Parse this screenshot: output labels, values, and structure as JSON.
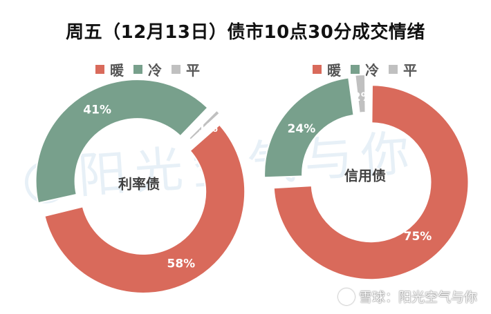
{
  "title": "周五（12月13日）债市10点30分成交情绪",
  "legend": {
    "items": [
      {
        "label": "暖",
        "color": "#d96a5b"
      },
      {
        "label": "冷",
        "color": "#78a08c"
      },
      {
        "label": "平",
        "color": "#c0c0c0"
      }
    ]
  },
  "chart_data": [
    {
      "type": "pie",
      "center_label": "利率债",
      "slices": [
        {
          "name": "暖",
          "value": 58,
          "label": "58%",
          "color": "#d96a5b"
        },
        {
          "name": "冷",
          "value": 41,
          "label": "41%",
          "color": "#78a08c"
        },
        {
          "name": "平",
          "value": 1,
          "label": "1%",
          "color": "#c0c0c0"
        }
      ]
    },
    {
      "type": "pie",
      "center_label": "信用债",
      "slices": [
        {
          "name": "暖",
          "value": 75,
          "label": "75%",
          "color": "#d96a5b"
        },
        {
          "name": "冷",
          "value": 24,
          "label": "24%",
          "color": "#78a08c"
        },
        {
          "name": "平",
          "value": 2,
          "label": "2%",
          "color": "#c0c0c0"
        }
      ]
    }
  ],
  "watermark": "@阳光空气与你",
  "footer": "雪球：阳光空气与你"
}
